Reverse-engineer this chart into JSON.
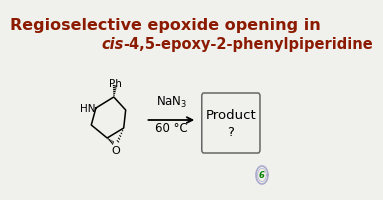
{
  "title_line1": "Regioselective epoxide opening in",
  "title_line2_italic": "cis",
  "title_line2_rest": "-4,5-epoxy-2-phenylpiperidine",
  "title_color": "#8B1A00",
  "title_fontsize1": 11.5,
  "title_fontsize2": 10.5,
  "bg_color": "#F0F0EC",
  "reagent_text": "NaN$_3$",
  "reagent_line2": "60 °C",
  "product_text1": "Product",
  "product_text2": "?",
  "arrow_color": "#000000",
  "molecule_color": "#000000",
  "box_color": "#666666",
  "watermark_color": "#AAAACC"
}
